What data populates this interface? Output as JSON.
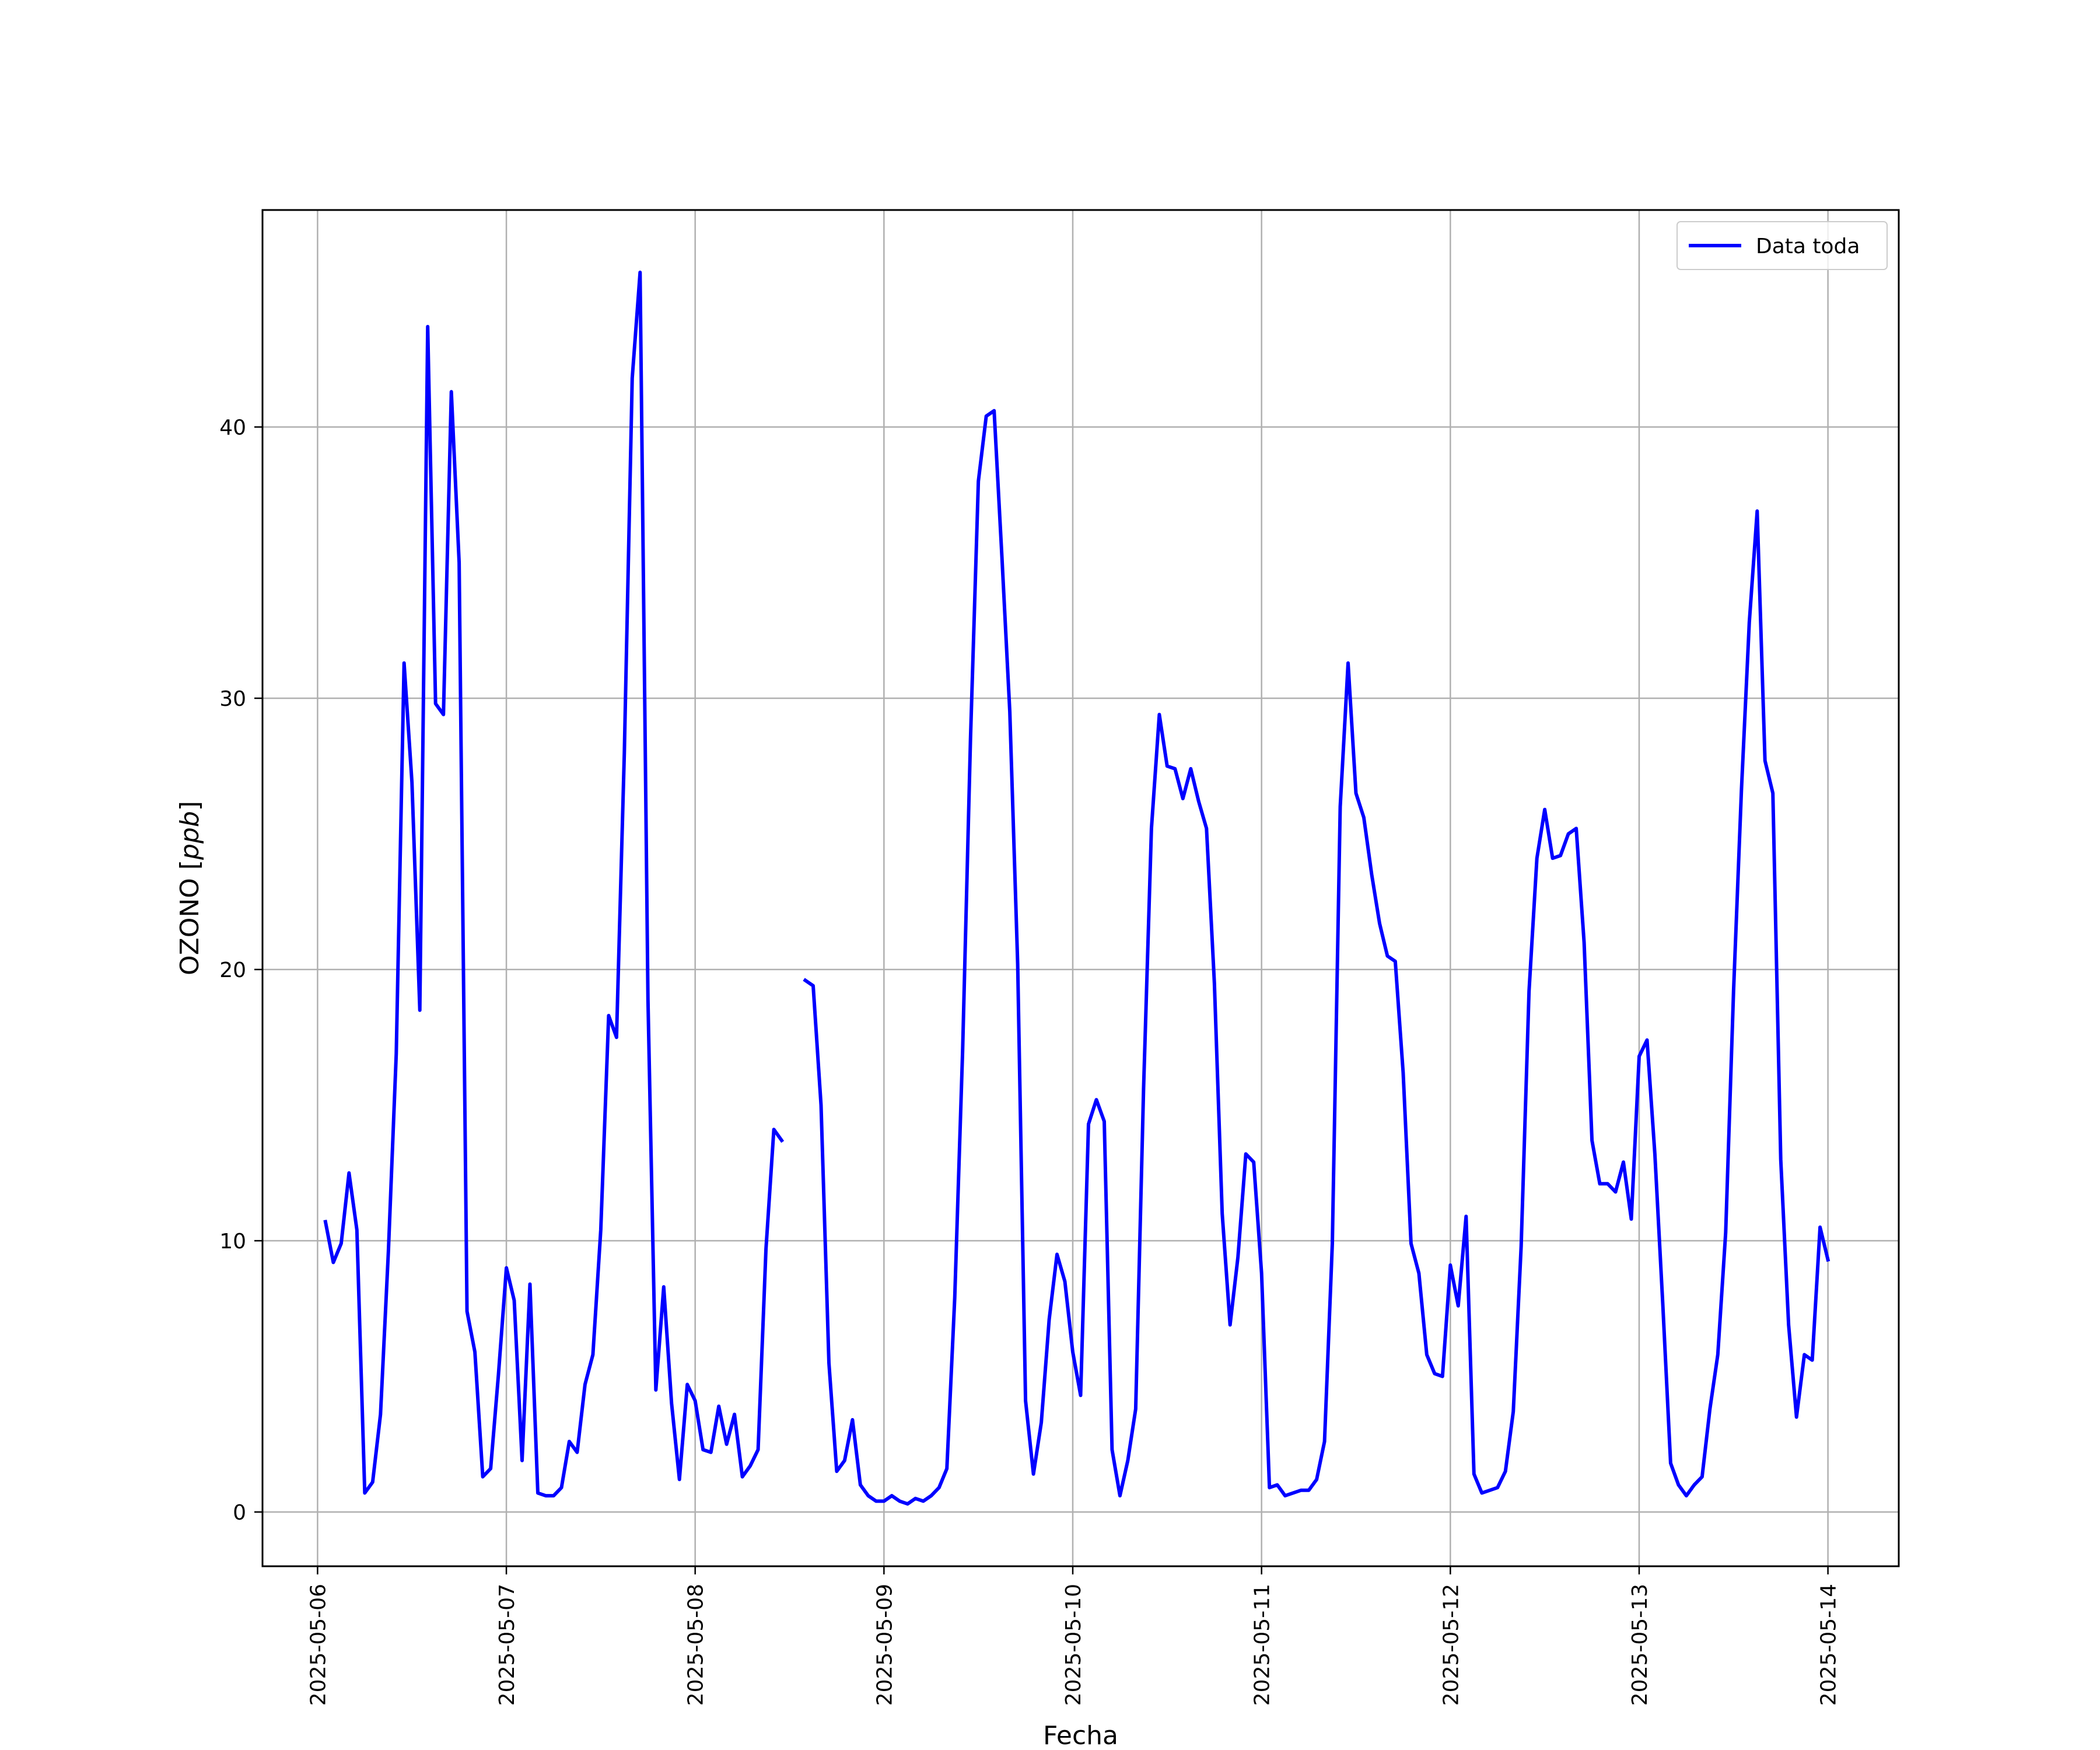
{
  "chart_data": {
    "type": "line",
    "xlabel": "Fecha",
    "ylabel": "OZONO [ppb]",
    "ylabel_parts": {
      "text": "OZONO [",
      "math": "ppb",
      "close": "]"
    },
    "xlim": [
      "2025-05-05 17:00",
      "2025-05-14 09:00"
    ],
    "ylim": [
      -2,
      48
    ],
    "x_ticks": [
      "2025-05-06",
      "2025-05-07",
      "2025-05-08",
      "2025-05-09",
      "2025-05-10",
      "2025-05-11",
      "2025-05-12",
      "2025-05-13",
      "2025-05-14"
    ],
    "y_ticks": [
      0,
      10,
      20,
      30,
      40
    ],
    "y_tick_labels": [
      "0",
      "10",
      "20",
      "30",
      "40"
    ],
    "grid": true,
    "legend": {
      "position": "top-right"
    },
    "series": [
      {
        "name": "Data toda",
        "color": "#0000ff",
        "points": [
          [
            "2025-05-06 01:00",
            10.7
          ],
          [
            "2025-05-06 02:00",
            9.2
          ],
          [
            "2025-05-06 03:00",
            9.9
          ],
          [
            "2025-05-06 04:00",
            12.5
          ],
          [
            "2025-05-06 05:00",
            10.4
          ],
          [
            "2025-05-06 06:00",
            0.7
          ],
          [
            "2025-05-06 07:00",
            1.1
          ],
          [
            "2025-05-06 08:00",
            3.6
          ],
          [
            "2025-05-06 09:00",
            9.6
          ],
          [
            "2025-05-06 10:00",
            16.9
          ],
          [
            "2025-05-06 11:00",
            31.3
          ],
          [
            "2025-05-06 12:00",
            26.9
          ],
          [
            "2025-05-06 13:00",
            18.5
          ],
          [
            "2025-05-06 14:00",
            43.7
          ],
          [
            "2025-05-06 15:00",
            29.8
          ],
          [
            "2025-05-06 16:00",
            29.4
          ],
          [
            "2025-05-06 17:00",
            41.3
          ],
          [
            "2025-05-06 18:00",
            35.0
          ],
          [
            "2025-05-06 19:00",
            7.4
          ],
          [
            "2025-05-06 20:00",
            5.9
          ],
          [
            "2025-05-06 21:00",
            1.3
          ],
          [
            "2025-05-06 22:00",
            1.6
          ],
          [
            "2025-05-06 23:00",
            5.1
          ],
          [
            "2025-05-07 00:00",
            9.0
          ],
          [
            "2025-05-07 01:00",
            7.8
          ],
          [
            "2025-05-07 02:00",
            1.9
          ],
          [
            "2025-05-07 03:00",
            8.4
          ],
          [
            "2025-05-07 04:00",
            0.7
          ],
          [
            "2025-05-07 05:00",
            0.6
          ],
          [
            "2025-05-07 06:00",
            0.6
          ],
          [
            "2025-05-07 07:00",
            0.9
          ],
          [
            "2025-05-07 08:00",
            2.6
          ],
          [
            "2025-05-07 09:00",
            2.2
          ],
          [
            "2025-05-07 10:00",
            4.7
          ],
          [
            "2025-05-07 11:00",
            5.8
          ],
          [
            "2025-05-07 12:00",
            10.4
          ],
          [
            "2025-05-07 13:00",
            18.3
          ],
          [
            "2025-05-07 14:00",
            17.5
          ],
          [
            "2025-05-07 15:00",
            28.0
          ],
          [
            "2025-05-07 16:00",
            41.8
          ],
          [
            "2025-05-07 17:00",
            45.7
          ],
          [
            "2025-05-07 18:00",
            18.9
          ],
          [
            "2025-05-07 19:00",
            4.5
          ],
          [
            "2025-05-07 20:00",
            8.3
          ],
          [
            "2025-05-07 21:00",
            4.0
          ],
          [
            "2025-05-07 22:00",
            1.2
          ],
          [
            "2025-05-07 23:00",
            4.7
          ],
          [
            "2025-05-08 00:00",
            4.1
          ],
          [
            "2025-05-08 01:00",
            2.3
          ],
          [
            "2025-05-08 02:00",
            2.2
          ],
          [
            "2025-05-08 03:00",
            3.9
          ],
          [
            "2025-05-08 04:00",
            2.5
          ],
          [
            "2025-05-08 05:00",
            3.6
          ],
          [
            "2025-05-08 06:00",
            1.3
          ],
          [
            "2025-05-08 07:00",
            1.7
          ],
          [
            "2025-05-08 08:00",
            2.3
          ],
          [
            "2025-05-08 09:00",
            9.7
          ],
          [
            "2025-05-08 10:00",
            14.1
          ],
          [
            "2025-05-08 11:00",
            13.7
          ],
          [
            "2025-05-08 12:00",
            null
          ],
          [
            "2025-05-08 13:00",
            null
          ],
          [
            "2025-05-08 14:00",
            19.6
          ],
          [
            "2025-05-08 15:00",
            19.4
          ],
          [
            "2025-05-08 16:00",
            15.0
          ],
          [
            "2025-05-08 17:00",
            5.5
          ],
          [
            "2025-05-08 18:00",
            1.5
          ],
          [
            "2025-05-08 19:00",
            1.9
          ],
          [
            "2025-05-08 20:00",
            3.4
          ],
          [
            "2025-05-08 21:00",
            1.0
          ],
          [
            "2025-05-08 22:00",
            0.6
          ],
          [
            "2025-05-08 23:00",
            0.4
          ],
          [
            "2025-05-09 00:00",
            0.4
          ],
          [
            "2025-05-09 01:00",
            0.6
          ],
          [
            "2025-05-09 02:00",
            0.4
          ],
          [
            "2025-05-09 03:00",
            0.3
          ],
          [
            "2025-05-09 04:00",
            0.5
          ],
          [
            "2025-05-09 05:00",
            0.4
          ],
          [
            "2025-05-09 06:00",
            0.6
          ],
          [
            "2025-05-09 07:00",
            0.9
          ],
          [
            "2025-05-09 08:00",
            1.6
          ],
          [
            "2025-05-09 09:00",
            7.9
          ],
          [
            "2025-05-09 10:00",
            17.0
          ],
          [
            "2025-05-09 11:00",
            28.5
          ],
          [
            "2025-05-09 12:00",
            38.0
          ],
          [
            "2025-05-09 13:00",
            40.4
          ],
          [
            "2025-05-09 14:00",
            40.6
          ],
          [
            "2025-05-09 15:00",
            35.2
          ],
          [
            "2025-05-09 16:00",
            29.5
          ],
          [
            "2025-05-09 17:00",
            20.2
          ],
          [
            "2025-05-09 18:00",
            4.1
          ],
          [
            "2025-05-09 19:00",
            1.4
          ],
          [
            "2025-05-09 20:00",
            3.3
          ],
          [
            "2025-05-09 21:00",
            7.1
          ],
          [
            "2025-05-09 22:00",
            9.5
          ],
          [
            "2025-05-09 23:00",
            8.5
          ],
          [
            "2025-05-10 00:00",
            5.9
          ],
          [
            "2025-05-10 01:00",
            4.3
          ],
          [
            "2025-05-10 02:00",
            14.3
          ],
          [
            "2025-05-10 03:00",
            15.2
          ],
          [
            "2025-05-10 04:00",
            14.4
          ],
          [
            "2025-05-10 05:00",
            2.3
          ],
          [
            "2025-05-10 06:00",
            0.6
          ],
          [
            "2025-05-10 07:00",
            1.9
          ],
          [
            "2025-05-10 08:00",
            3.8
          ],
          [
            "2025-05-10 09:00",
            15.6
          ],
          [
            "2025-05-10 10:00",
            25.2
          ],
          [
            "2025-05-10 11:00",
            29.4
          ],
          [
            "2025-05-10 12:00",
            27.5
          ],
          [
            "2025-05-10 13:00",
            27.4
          ],
          [
            "2025-05-10 14:00",
            26.3
          ],
          [
            "2025-05-10 15:00",
            27.4
          ],
          [
            "2025-05-10 16:00",
            26.2
          ],
          [
            "2025-05-10 17:00",
            25.2
          ],
          [
            "2025-05-10 18:00",
            19.5
          ],
          [
            "2025-05-10 19:00",
            11.0
          ],
          [
            "2025-05-10 20:00",
            6.9
          ],
          [
            "2025-05-10 21:00",
            9.4
          ],
          [
            "2025-05-10 22:00",
            13.2
          ],
          [
            "2025-05-10 23:00",
            12.9
          ],
          [
            "2025-05-11 00:00",
            8.8
          ],
          [
            "2025-05-11 01:00",
            0.9
          ],
          [
            "2025-05-11 02:00",
            1.0
          ],
          [
            "2025-05-11 03:00",
            0.6
          ],
          [
            "2025-05-11 04:00",
            0.7
          ],
          [
            "2025-05-11 05:00",
            0.8
          ],
          [
            "2025-05-11 06:00",
            0.8
          ],
          [
            "2025-05-11 07:00",
            1.2
          ],
          [
            "2025-05-11 08:00",
            2.6
          ],
          [
            "2025-05-11 09:00",
            9.9
          ],
          [
            "2025-05-11 10:00",
            26.0
          ],
          [
            "2025-05-11 11:00",
            31.3
          ],
          [
            "2025-05-11 12:00",
            26.5
          ],
          [
            "2025-05-11 13:00",
            25.6
          ],
          [
            "2025-05-11 14:00",
            23.5
          ],
          [
            "2025-05-11 15:00",
            21.7
          ],
          [
            "2025-05-11 16:00",
            20.5
          ],
          [
            "2025-05-11 17:00",
            20.3
          ],
          [
            "2025-05-11 18:00",
            16.2
          ],
          [
            "2025-05-11 19:00",
            9.9
          ],
          [
            "2025-05-11 20:00",
            8.8
          ],
          [
            "2025-05-11 21:00",
            5.8
          ],
          [
            "2025-05-11 22:00",
            5.1
          ],
          [
            "2025-05-11 23:00",
            5.0
          ],
          [
            "2025-05-12 00:00",
            9.1
          ],
          [
            "2025-05-12 01:00",
            7.6
          ],
          [
            "2025-05-12 02:00",
            10.9
          ],
          [
            "2025-05-12 03:00",
            1.4
          ],
          [
            "2025-05-12 04:00",
            0.7
          ],
          [
            "2025-05-12 05:00",
            0.8
          ],
          [
            "2025-05-12 06:00",
            0.9
          ],
          [
            "2025-05-12 07:00",
            1.5
          ],
          [
            "2025-05-12 08:00",
            3.7
          ],
          [
            "2025-05-12 09:00",
            9.8
          ],
          [
            "2025-05-12 10:00",
            19.2
          ],
          [
            "2025-05-12 11:00",
            24.1
          ],
          [
            "2025-05-12 12:00",
            25.9
          ],
          [
            "2025-05-12 13:00",
            24.1
          ],
          [
            "2025-05-12 14:00",
            24.2
          ],
          [
            "2025-05-12 15:00",
            25.0
          ],
          [
            "2025-05-12 16:00",
            25.2
          ],
          [
            "2025-05-12 17:00",
            21.0
          ],
          [
            "2025-05-12 18:00",
            13.7
          ],
          [
            "2025-05-12 19:00",
            12.1
          ],
          [
            "2025-05-12 20:00",
            12.1
          ],
          [
            "2025-05-12 21:00",
            11.8
          ],
          [
            "2025-05-12 22:00",
            12.9
          ],
          [
            "2025-05-12 23:00",
            10.8
          ],
          [
            "2025-05-13 00:00",
            16.8
          ],
          [
            "2025-05-13 01:00",
            17.4
          ],
          [
            "2025-05-13 02:00",
            13.2
          ],
          [
            "2025-05-13 03:00",
            7.7
          ],
          [
            "2025-05-13 04:00",
            1.8
          ],
          [
            "2025-05-13 05:00",
            1.0
          ],
          [
            "2025-05-13 06:00",
            0.6
          ],
          [
            "2025-05-13 07:00",
            1.0
          ],
          [
            "2025-05-13 08:00",
            1.3
          ],
          [
            "2025-05-13 09:00",
            3.8
          ],
          [
            "2025-05-13 10:00",
            5.8
          ],
          [
            "2025-05-13 11:00",
            10.3
          ],
          [
            "2025-05-13 12:00",
            19.2
          ],
          [
            "2025-05-13 13:00",
            26.6
          ],
          [
            "2025-05-13 14:00",
            32.8
          ],
          [
            "2025-05-13 15:00",
            36.9
          ],
          [
            "2025-05-13 16:00",
            27.7
          ],
          [
            "2025-05-13 17:00",
            26.5
          ],
          [
            "2025-05-13 18:00",
            13.0
          ],
          [
            "2025-05-13 19:00",
            6.9
          ],
          [
            "2025-05-13 20:00",
            3.5
          ],
          [
            "2025-05-13 21:00",
            5.8
          ],
          [
            "2025-05-13 22:00",
            5.6
          ],
          [
            "2025-05-13 23:00",
            10.5
          ],
          [
            "2025-05-14 00:00",
            9.3
          ]
        ]
      }
    ]
  }
}
